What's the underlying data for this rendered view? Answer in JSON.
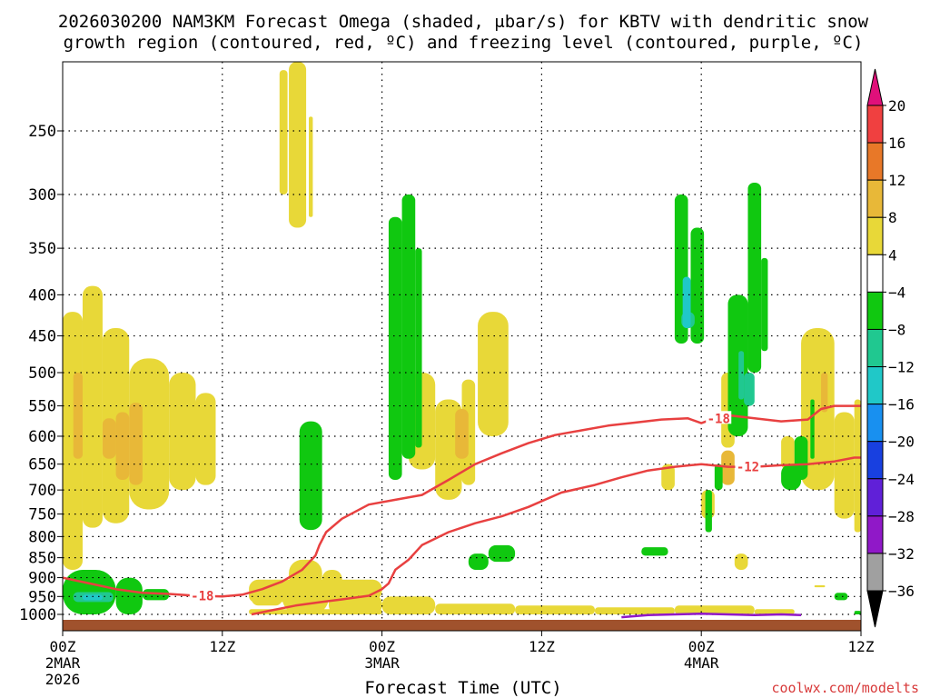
{
  "chart_data": {
    "type": "heatmap",
    "title_line1": "2026030200 NAM3KM Forecast Omega (shaded, μbar/s) for KBTV with dendritic snow",
    "title_line2": "growth region (contoured, red, ºC) and freezing level (contoured, purple, ºC)",
    "xlabel": "Forecast Time (UTC)",
    "ylabel": "",
    "credit": "coolwx.com/modelts",
    "x_ticks": [
      {
        "label": "00Z",
        "sub": "2MAR",
        "sub2": "2026",
        "hour": 0
      },
      {
        "label": "12Z",
        "sub": "",
        "sub2": "",
        "hour": 12
      },
      {
        "label": "00Z",
        "sub": "3MAR",
        "sub2": "",
        "hour": 24
      },
      {
        "label": "12Z",
        "sub": "",
        "sub2": "",
        "hour": 36
      },
      {
        "label": "00Z",
        "sub": "4MAR",
        "sub2": "",
        "hour": 48
      },
      {
        "label": "12Z",
        "sub": "",
        "sub2": "",
        "hour": 60
      }
    ],
    "xlim": [
      0,
      60
    ],
    "y_ticks": [
      250,
      300,
      350,
      400,
      450,
      500,
      550,
      600,
      650,
      700,
      750,
      800,
      850,
      900,
      950,
      1000
    ],
    "ylim_hPa": [
      1000,
      200
    ],
    "colorbar": {
      "levels": [
        20,
        16,
        12,
        8,
        4,
        -4,
        -8,
        -12,
        -16,
        -20,
        -24,
        -28,
        -32,
        -36
      ],
      "colors": [
        "#f04040",
        "#e87828",
        "#e8b838",
        "#e8d838",
        "#ffffff",
        "#10c810",
        "#20c890",
        "#20c8c8",
        "#1890f0",
        "#1840e0",
        "#6020d8",
        "#9018c8",
        "#a0a0a0"
      ],
      "top_color": "#e0107a",
      "bottom_color": "#000000"
    },
    "contours": [
      {
        "name": "dgz-minus-12",
        "label": "-12",
        "color": "#e84040",
        "points": [
          [
            14.2,
            1000
          ],
          [
            15.5,
            990
          ],
          [
            17.5,
            975
          ],
          [
            19.5,
            965
          ],
          [
            21,
            958
          ],
          [
            23,
            948
          ],
          [
            24,
            930
          ],
          [
            24.5,
            915
          ],
          [
            25,
            880
          ],
          [
            26,
            855
          ],
          [
            27,
            820
          ],
          [
            29,
            790
          ],
          [
            31,
            770
          ],
          [
            33,
            755
          ],
          [
            35,
            735
          ],
          [
            37.5,
            705
          ],
          [
            40,
            690
          ],
          [
            42,
            675
          ],
          [
            44,
            662
          ],
          [
            46,
            655
          ],
          [
            48,
            650
          ],
          [
            50,
            655
          ],
          [
            52,
            655
          ],
          [
            54,
            652
          ],
          [
            56,
            650
          ],
          [
            58,
            645
          ],
          [
            59.5,
            638
          ],
          [
            60,
            638
          ]
        ]
      },
      {
        "name": "dgz-minus-18",
        "label": "-18",
        "color": "#e84040",
        "points": [
          [
            0,
            900
          ],
          [
            2,
            915
          ],
          [
            4,
            930
          ],
          [
            6,
            940
          ],
          [
            8,
            943
          ],
          [
            10,
            948
          ],
          [
            12,
            950
          ],
          [
            13.5,
            945
          ],
          [
            15,
            930
          ],
          [
            16.5,
            910
          ],
          [
            18,
            880
          ],
          [
            19,
            845
          ],
          [
            19.3,
            820
          ],
          [
            19.8,
            790
          ],
          [
            21,
            760
          ],
          [
            23,
            730
          ],
          [
            25,
            720
          ],
          [
            27,
            710
          ],
          [
            29,
            680
          ],
          [
            31,
            650
          ],
          [
            33,
            630
          ],
          [
            35,
            612
          ],
          [
            37,
            598
          ],
          [
            39,
            590
          ],
          [
            41,
            582
          ],
          [
            43,
            577
          ],
          [
            45,
            572
          ],
          [
            47,
            570
          ],
          [
            48,
            578
          ],
          [
            49,
            570
          ],
          [
            50,
            565
          ],
          [
            52,
            570
          ],
          [
            54,
            575
          ],
          [
            56,
            572
          ],
          [
            57,
            555
          ],
          [
            58,
            550
          ],
          [
            60,
            550
          ]
        ]
      }
    ],
    "freezing_level": {
      "name": "freezing-level",
      "color": "#9018c8",
      "points": [
        [
          42,
          1008
        ],
        [
          44,
          1002
        ],
        [
          46,
          1000
        ],
        [
          48,
          998
        ],
        [
          50,
          1000
        ],
        [
          52,
          1002
        ],
        [
          54,
          1000
        ],
        [
          55.5,
          1002
        ]
      ]
    },
    "shaded_regions": [
      {
        "color": "#e8d838",
        "cells": [
          [
            0,
            1.5,
            420,
            880
          ],
          [
            1.5,
            3,
            390,
            780
          ],
          [
            3,
            5,
            440,
            770
          ],
          [
            5,
            8,
            480,
            740
          ],
          [
            8,
            10,
            500,
            700
          ],
          [
            10,
            11.5,
            530,
            690
          ],
          [
            16.3,
            16.9,
            210,
            300
          ],
          [
            17,
            18.3,
            200,
            330
          ],
          [
            18.5,
            18.8,
            240,
            320
          ],
          [
            14.2,
            16.5,
            935,
            975
          ],
          [
            16.5,
            20,
            900,
            1000
          ],
          [
            20,
            24,
            945,
            1000
          ],
          [
            24,
            28,
            950,
            1000
          ],
          [
            28,
            34,
            970,
            1000
          ],
          [
            34,
            40,
            975,
            1000
          ],
          [
            40,
            46,
            980,
            1000
          ],
          [
            46,
            52,
            975,
            1000
          ],
          [
            52,
            55,
            985,
            1000
          ],
          [
            14,
            17,
            930,
            965
          ],
          [
            17,
            19.5,
            855,
            930
          ],
          [
            19.5,
            21,
            880,
            945
          ],
          [
            14,
            24,
            905,
            960
          ],
          [
            14,
            24,
            985,
            1000
          ],
          [
            26,
            28,
            500,
            660
          ],
          [
            28,
            30,
            540,
            720
          ],
          [
            30,
            31,
            510,
            690
          ],
          [
            31.2,
            33.5,
            420,
            600
          ],
          [
            49.5,
            50.5,
            500,
            620
          ],
          [
            55.5,
            58,
            440,
            700
          ],
          [
            58,
            59.5,
            560,
            760
          ],
          [
            59.5,
            60,
            540,
            790
          ],
          [
            56.5,
            57.3,
            920,
            925
          ],
          [
            50.5,
            51.5,
            840,
            880
          ],
          [
            48,
            49,
            700,
            760
          ],
          [
            45,
            46,
            650,
            700
          ],
          [
            54,
            55,
            600,
            660
          ]
        ]
      },
      {
        "color": "#e8b838",
        "cells": [
          [
            0.8,
            1.5,
            500,
            640
          ],
          [
            3,
            4,
            570,
            640
          ],
          [
            4,
            5,
            560,
            680
          ],
          [
            5,
            6,
            545,
            690
          ],
          [
            29.5,
            30.5,
            555,
            640
          ],
          [
            49.5,
            50.5,
            625,
            690
          ],
          [
            57,
            57.5,
            500,
            560
          ]
        ]
      },
      {
        "color": "#10c810",
        "cells": [
          [
            17.8,
            19.5,
            575,
            785
          ],
          [
            24.5,
            25.5,
            320,
            680
          ],
          [
            25.5,
            26.5,
            300,
            640
          ],
          [
            26.5,
            27,
            350,
            620
          ],
          [
            46,
            47,
            300,
            460
          ],
          [
            47.2,
            48.2,
            330,
            460
          ],
          [
            50,
            51.5,
            400,
            600
          ],
          [
            51.5,
            52.5,
            290,
            500
          ],
          [
            52.5,
            53,
            360,
            470
          ],
          [
            32,
            34,
            820,
            860
          ],
          [
            30.5,
            32,
            840,
            880
          ],
          [
            43.5,
            45.5,
            825,
            845
          ],
          [
            49,
            49.6,
            650,
            700
          ],
          [
            55,
            56,
            600,
            680
          ],
          [
            48.3,
            48.8,
            700,
            790
          ],
          [
            54,
            55.5,
            650,
            700
          ],
          [
            56.2,
            56.5,
            540,
            640
          ],
          [
            58,
            59,
            940,
            960
          ],
          [
            59.5,
            60,
            990,
            1000
          ],
          [
            0,
            4,
            880,
            1000
          ],
          [
            4,
            6,
            900,
            1000
          ],
          [
            6,
            8,
            930,
            960
          ]
        ]
      },
      {
        "color": "#20c890",
        "cells": [
          [
            0.8,
            3.8,
            938,
            965
          ],
          [
            46.5,
            47.5,
            420,
            440
          ],
          [
            50.8,
            51.2,
            470,
            540
          ],
          [
            51.2,
            52,
            500,
            550
          ]
        ]
      },
      {
        "color": "#20c8c8",
        "cells": [
          [
            1.5,
            3,
            945,
            960
          ],
          [
            46.6,
            47.2,
            380,
            440
          ]
        ]
      }
    ],
    "ground_color": "#a0522d",
    "plot_background": "#ffffff"
  }
}
